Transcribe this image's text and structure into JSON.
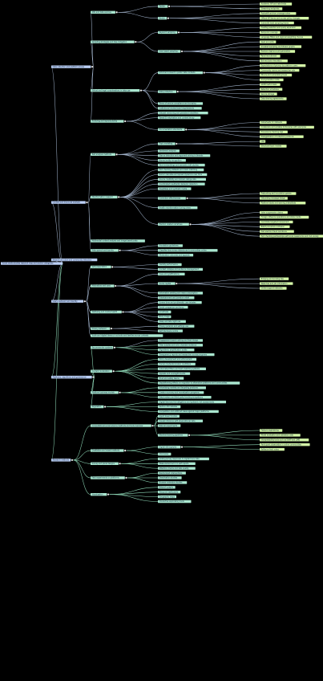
{
  "palette": {
    "background": "#000000",
    "root": "#bcd0f5",
    "level1": "#bcd0f5",
    "level2": "#a9e6cf",
    "level3": "#a9e6cf",
    "level4": "#d4f7a8",
    "edge_upper": "#9fb0c8",
    "edge_lower": "#8fd9b8"
  },
  "root": {
    "label": "Social media studies research map and section categories",
    "children": [
      {
        "label": "Data collection and platform access",
        "children": [
          {
            "label": "APIs and data sources",
            "children": [
              {
                "label": "Twitter",
                "children": [
                  {
                    "label": "Academic API and rate limits"
                  },
                  {
                    "label": "Streaming endpoints"
                  }
                ]
              },
              {
                "label": "Reddit",
                "children": [
                  {
                    "label": "Pushshift archive coverage notes"
                  },
                  {
                    "label": "Official API terms and access policy changes"
                  },
                  {
                    "label": "Subreddit level sampling frame"
                  }
                ]
              }
            ]
          },
          {
            "label": "Sampling strategies and bias mitigation",
            "children": [
              {
                "label": "Keyword sampling",
                "children": [
                  {
                    "label": "Hashtag selection and query expansion"
                  },
                  {
                    "label": "Temporal coverage"
                  },
                  {
                    "label": "Language filters and regional weighting choices"
                  }
                ]
              },
              {
                "label": "User based sampling",
                "children": [
                  {
                    "label": "Seed accounts"
                  },
                  {
                    "label": "Snowball sampling via follower graphs"
                  },
                  {
                    "label": "Random digit account generation"
                  },
                  {
                    "label": "Panel recruitment"
                  },
                  {
                    "label": "Bot exclusion heuristics"
                  }
                ]
              }
            ]
          },
          {
            "label": "Ethical and legal considerations in data use",
            "children": [
              {
                "label": "Informed consent in public data contexts",
                "children": [
                  {
                    "label": "Expectations of privacy by platform users"
                  },
                  {
                    "label": "Community norms and researcher role"
                  },
                  {
                    "label": "Minors and vulnerable groups"
                  },
                  {
                    "label": "Anonymization limits"
                  }
                ]
              },
              {
                "label": "Data protection",
                "children": [
                  {
                    "label": "GDPR lawful basis"
                  },
                  {
                    "label": "Retention schedules"
                  },
                  {
                    "label": "Secure storage"
                  },
                  {
                    "label": "Data sharing agreements"
                  }
                ]
              },
              {
                "label": "Terms of service compliance and scraping"
              },
              {
                "label": "Institutional review board requirements"
              }
            ]
          },
          {
            "label": "Archiving and reproducibility",
            "children": [
              {
                "label": "Dataset versioning and persistent identifiers"
              },
              {
                "label": "Tweet ID rehydration and content decay"
              },
              {
                "label": "Documentation standards",
                "children": [
                  {
                    "label": "Datasheets for datasets"
                  },
                  {
                    "label": "Codebooks and variable dictionaries with examples"
                  },
                  {
                    "label": "Provenance tracking logs"
                  },
                  {
                    "label": "Preregistration of collection protocols"
                  }
                ]
              }
            ]
          }
        ]
      },
      {
        "label": "Content and discourse analysis",
        "children": [
          {
            "label": "Text analysis methods",
            "children": [
              {
                "label": "Topic modeling",
                "children": [
                  {
                    "label": "LDA"
                  },
                  {
                    "label": "Structural topic models"
                  }
                ]
              },
              {
                "label": "Sentiment analysis"
              },
              {
                "label": "Stance detection and argument mining in threads"
              },
              {
                "label": "Named entity recognition"
              },
              {
                "label": "Word embeddings and semantic drift studies"
              }
            ]
          },
          {
            "label": "Misinformation research",
            "children": [
              {
                "label": "Fact checking datasets and claim matching"
              },
              {
                "label": "Rumor cascades and spread dynamics over time"
              },
              {
                "label": "Source credibility and domain ratings lists"
              },
              {
                "label": "Coordinated inauthentic behavior detection"
              },
              {
                "label": "Deepfakes and synthetic media"
              },
              {
                "label": "Correction effectiveness",
                "children": [
                  {
                    "label": "Prebunking and inoculation games"
                  },
                  {
                    "label": "Debunking message design"
                  },
                  {
                    "label": "Platform labels and warning interstitials"
                  }
                ]
              },
              {
                "label": "Health misinformation during crises"
              },
              {
                "label": "Election related narratives",
                "children": [
                  {
                    "label": "Voter suppression claims"
                  },
                  {
                    "label": "Foreign influence operations and state media"
                  },
                  {
                    "label": "Candidate targeted harassment"
                  },
                  {
                    "label": "Ballot procedure confusion"
                  },
                  {
                    "label": "Post election fraud narratives"
                  },
                  {
                    "label": "Fact checking partnerships with local newsrooms and civil society"
                  }
                ]
              }
            ]
          },
          {
            "label": "Multimodal content analysis and image based posts"
          },
          {
            "label": "Hate speech and toxicity",
            "children": [
              {
                "label": "Annotation guidelines"
              },
              {
                "label": "Classifier bias across dialects and communities online"
              },
              {
                "label": "Moderation outcomes and appeals"
              }
            ]
          }
        ]
      },
      {
        "label": "Network structure and community detection"
      },
      {
        "label": "Users, behavior and identity",
        "children": [
          {
            "label": "Self presentation",
            "children": [
              {
                "label": "Identity performance"
              },
              {
                "label": "Context collapse and audience management"
              }
            ]
          },
          {
            "label": "Motivations and uses",
            "children": [
              {
                "label": "Uses and gratifications"
              },
              {
                "label": "Social capital",
                "children": [
                  {
                    "label": "Bridging and bonding ties"
                  },
                  {
                    "label": "Weak ties and job information"
                  },
                  {
                    "label": "Online support networks"
                  }
                ]
              },
              {
                "label": "Information seeking and news consumption"
              },
              {
                "label": "Entertainment and boredom relief"
              }
            ]
          },
          {
            "label": "Wellbeing and mental health",
            "children": [
              {
                "label": "Screen time and problematic use debates"
              },
              {
                "label": "Social comparison and envy"
              },
              {
                "label": "Loneliness"
              },
              {
                "label": "Body image"
              },
              {
                "label": "Sleep and late night use"
              }
            ]
          },
          {
            "label": "Privacy behavior",
            "children": [
              {
                "label": "Privacy paradox and settings use"
              },
              {
                "label": "Self disclosure norms"
              }
            ]
          },
          {
            "label": "Youth and digital literacy in schools and families across contexts"
          }
        ]
      },
      {
        "label": "Platforms, algorithms and governance",
        "children": [
          {
            "label": "Recommender systems",
            "children": [
              {
                "label": "Engagement based ranking and feed design"
              },
              {
                "label": "Filter bubbles and echo chamber evidence"
              },
              {
                "label": "Algorithmic amplification audits"
              },
              {
                "label": "Transparency reports and researcher access programs"
              }
            ]
          },
          {
            "label": "Content moderation",
            "children": [
              {
                "label": "Policy development and enforcement"
              },
              {
                "label": "Human moderators labor conditions"
              },
              {
                "label": "Automated filters and hash matching systems"
              },
              {
                "label": "Appeals and oversight boards"
              },
              {
                "label": "Trust and safety teams"
              },
              {
                "label": "Deplatforming effects on migration to alternative platforms and communities"
              }
            ]
          },
          {
            "label": "Platform business models",
            "children": [
              {
                "label": "Advertising markets and targeting practices"
              },
              {
                "label": "Creator economy and monetization programs"
              },
              {
                "label": "Data brokers and third party tracking ecosystems"
              }
            ]
          },
          {
            "label": "Regulation",
            "children": [
              {
                "label": "Digital Services Act obligations and systemic risk assessments"
              },
              {
                "label": "Section 230 debates"
              },
              {
                "label": "Competition and antitrust cases against major platforms"
              }
            ]
          }
        ]
      },
      {
        "label": "Research methods",
        "children": [
          {
            "label": "Computational social science methods and tools overview",
            "children": [
              {
                "label": "Agent based models"
              },
              {
                "label": "Causal inference with observational data"
              },
              {
                "label": "Natural experiments"
              },
              {
                "label": "Machine learning pipelines",
                "children": [
                  {
                    "label": "Feature engineering"
                  },
                  {
                    "label": "Model evaluation and validation sets"
                  },
                  {
                    "label": "Interpretability tools such as SHAP and LIME"
                  }
                ]
              }
            ]
          },
          {
            "label": "Qualitative and mixed methods",
            "children": [
              {
                "label": "Digital ethnography",
                "children": [
                  {
                    "label": "Participant observation in online communities"
                  },
                  {
                    "label": "Reflexive field notes"
                  }
                ]
              },
              {
                "label": "Interviews"
              }
            ]
          },
          {
            "label": "Survey and panel designs",
            "children": [
              {
                "label": "Linking survey responses to digital trace data"
              },
              {
                "label": "Measurement error in self reports"
              },
              {
                "label": "Attention checks and data quality"
              }
            ]
          },
          {
            "label": "Field experiments on platforms",
            "children": [
              {
                "label": "Randomized interventions"
              },
              {
                "label": "Deactivation studies"
              },
              {
                "label": "Browser extension studies"
              }
            ]
          },
          {
            "label": "Visualization",
            "children": [
              {
                "label": "Network graphs"
              },
              {
                "label": "Temporal dashboards"
              },
              {
                "label": "Geographic maps"
              },
              {
                "label": "Interactive exploratory tools"
              }
            ]
          }
        ]
      }
    ]
  }
}
